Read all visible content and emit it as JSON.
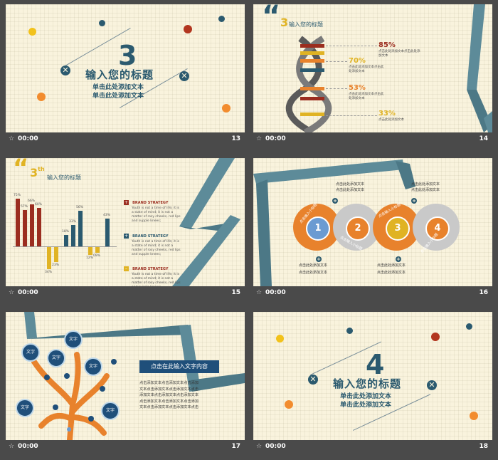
{
  "slides": [
    {
      "time": "00:00",
      "number": "13",
      "big": "3",
      "title": "输入您的标题",
      "sub1": "单击此处添加文本",
      "sub2": "单击此处添加文本"
    },
    {
      "time": "00:00",
      "number": "14",
      "quote": "“",
      "heading": "3",
      "heading_text": "输入您的标题",
      "items": [
        {
          "pct": "85%",
          "color": "#9b2d1f",
          "text": "点击此处添加文本点击此处添加文本"
        },
        {
          "pct": "70%",
          "color": "#e0b324",
          "text": "点击此处添加文本点击此处添加文本"
        },
        {
          "pct": "53%",
          "color": "#e8822c",
          "text": "点击此处添加文本点击此处添加文本"
        },
        {
          "pct": "33%",
          "color": "#e0b324",
          "text": "点击此处添加文本"
        }
      ]
    },
    {
      "time": "00:00",
      "number": "15",
      "quote": "“",
      "heading": "3",
      "heading_sup": "th",
      "heading_text": "输入您的标题",
      "bars_up": [
        {
          "label": "75%",
          "v": 75,
          "color": "#9b2d1f"
        },
        {
          "label": "57%",
          "v": 57,
          "color": "#9b2d1f"
        },
        {
          "label": "66%",
          "v": 66,
          "color": "#9b2d1f"
        },
        {
          "label": "60%",
          "v": 60,
          "color": "#9b2d1f"
        }
      ],
      "bars_down": [
        {
          "label": "34%",
          "v": 34,
          "color": "#e0b324"
        },
        {
          "label": "23%",
          "v": 23,
          "color": "#e0b324"
        }
      ],
      "bars_up2": [
        {
          "label": "18%",
          "v": 18,
          "color": "#2b5a6f"
        },
        {
          "label": "33%",
          "v": 33,
          "color": "#2b5a6f"
        },
        {
          "label": "56%",
          "v": 56,
          "color": "#2b5a6f"
        }
      ],
      "bars_down2": [
        {
          "label": "12%",
          "v": 12,
          "color": "#e0b324"
        },
        {
          "label": "09%",
          "v": 9,
          "color": "#e0b324"
        }
      ],
      "bar_last": {
        "label": "43%",
        "v": 43,
        "color": "#2b5a6f"
      },
      "legend": [
        {
          "title": "BRAND STRATEGY",
          "text": "Youth is not a time of life; it is a state of mind; it is not a matter of rosy cheeks, red lips and supple knees;",
          "color": "#9b2d1f"
        },
        {
          "title": "BRAND STRATEGY",
          "text": "Youth is not a time of life; it is a state of mind; it is not a matter of rosy cheeks, red lips and supple knees;",
          "color": "#2b5a6f"
        },
        {
          "title": "BRAND STRATEGY",
          "text": "Youth is not a time of life; it is a state of mind; it is not a matter of rosy cheeks, red lips and supple knees;",
          "color": "#e0b324"
        }
      ]
    },
    {
      "time": "00:00",
      "number": "16",
      "circles": [
        {
          "n": "1",
          "color": "#6b9bd2"
        },
        {
          "n": "2",
          "color": "#e8822c"
        },
        {
          "n": "3",
          "color": "#e0b324"
        },
        {
          "n": "4",
          "color": "#e8822c"
        }
      ],
      "arc_label": "点击输入小标题",
      "top_text_1": "点击此处添加文本",
      "top_text_2": "点击此处添加文本",
      "texts": "点击此处添加文本"
    },
    {
      "time": "00:00",
      "number": "17",
      "banner": "点击在此输入文字内容",
      "para": [
        "点击添加文本点击添加文本点击添加",
        "文本点击添加文本点击添加文本点击",
        "添加文本点击添加文本点击添加文本",
        "点击添加文本点击添加文本点击添加",
        "文本点击添加文本点击添加文本点击"
      ],
      "bubbles": [
        "文字",
        "文字",
        "文字",
        "文字",
        "文字",
        "文字"
      ]
    },
    {
      "time": "00:00",
      "number": "18",
      "big": "4",
      "title": "输入您的标题",
      "sub1": "单击此处添加文本",
      "sub2": "单击此处添加文本"
    }
  ],
  "star": "☆"
}
